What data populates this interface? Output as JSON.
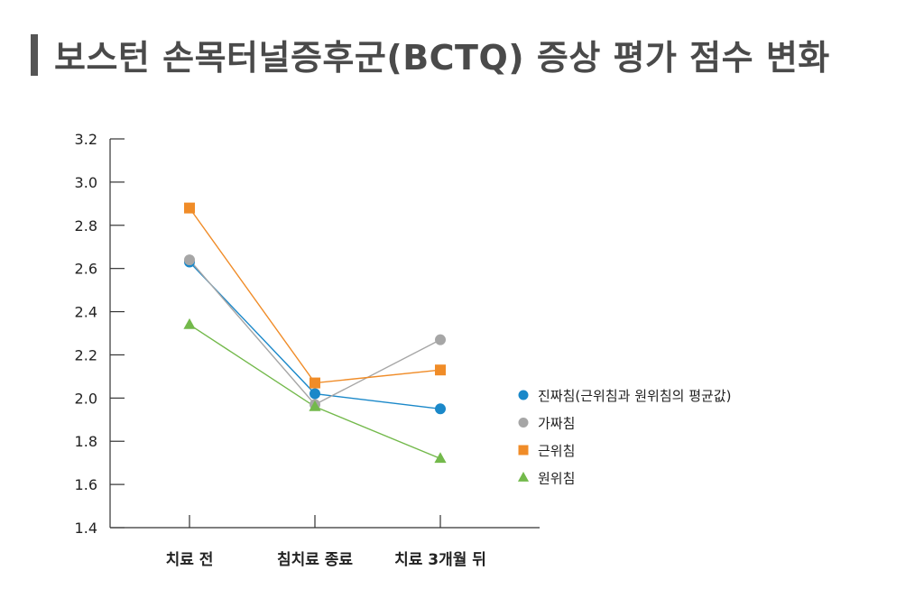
{
  "title": "보스턴 손목터널증후군(BCTQ) 증상 평가 점수 변화",
  "chart_data": {
    "type": "line",
    "title": "보스턴 손목터널증후군(BCTQ) 증상 평가 점수 변화",
    "xlabel": "",
    "ylabel": "",
    "categories": [
      "치료 전",
      "침치료 종료",
      "치료 3개월 뒤"
    ],
    "ylim": [
      1.4,
      3.2
    ],
    "yticks": [
      "1.4",
      "1.6",
      "1.8",
      "2.0",
      "2.2",
      "2.4",
      "2.6",
      "2.8",
      "3.0",
      "3.2"
    ],
    "grid": false,
    "legend_position": "right",
    "series": [
      {
        "name": "진짜침(근위침과 원위침의 평균값)",
        "marker": "circle",
        "color": "#1a88c9",
        "values": [
          2.63,
          2.02,
          1.95
        ]
      },
      {
        "name": "가짜침",
        "marker": "circle",
        "color": "#a6a6a6",
        "values": [
          2.64,
          1.97,
          2.27
        ]
      },
      {
        "name": "근위침",
        "marker": "square",
        "color": "#f08c28",
        "values": [
          2.88,
          2.07,
          2.13
        ]
      },
      {
        "name": "원위침",
        "marker": "triangle",
        "color": "#73b94b",
        "values": [
          2.34,
          1.96,
          1.72
        ]
      }
    ]
  }
}
